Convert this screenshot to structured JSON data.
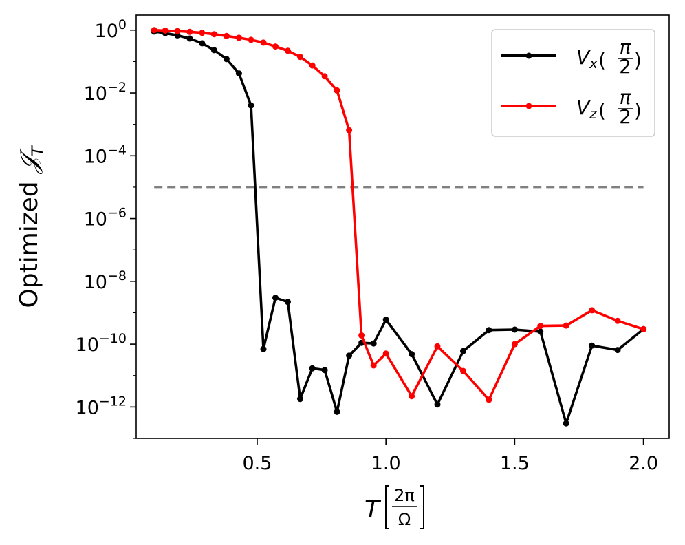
{
  "chart_data": {
    "type": "line",
    "yscale": "log",
    "xlim": [
      0.03,
      2.1
    ],
    "ylim": [
      1e-13,
      3.0
    ],
    "grid": false,
    "legend_position": "top-right",
    "xlabel": {
      "main": "T",
      "frac_num": "2π",
      "frac_den": "Ω"
    },
    "ylabel": {
      "text": "Optimized ",
      "symbol": "𝒥",
      "subscript": "T"
    },
    "xticks": [
      {
        "value": 0.5,
        "label": "0.5"
      },
      {
        "value": 1.0,
        "label": "1.0"
      },
      {
        "value": 1.5,
        "label": "1.5"
      },
      {
        "value": 2.0,
        "label": "2.0"
      }
    ],
    "yticks": [
      {
        "exp": 0,
        "base": "10",
        "label": "0"
      },
      {
        "exp": -2,
        "base": "10",
        "label": "−2"
      },
      {
        "exp": -4,
        "base": "10",
        "label": "−4"
      },
      {
        "exp": -6,
        "base": "10",
        "label": "−6"
      },
      {
        "exp": -8,
        "base": "10",
        "label": "−8"
      },
      {
        "exp": -10,
        "base": "10",
        "label": "−10"
      },
      {
        "exp": -12,
        "base": "10",
        "label": "−12"
      }
    ],
    "threshold": {
      "value": 1e-05,
      "x_start": 0.1,
      "x_end": 2.0,
      "color": "#808080",
      "style": "dashed"
    },
    "series": [
      {
        "name": "Vx(π/2)",
        "legend": {
          "main": "V",
          "sub": "x",
          "num": "π",
          "den": "2"
        },
        "color": "#000000",
        "points": [
          [
            0.1,
            0.9
          ],
          [
            0.143,
            0.8
          ],
          [
            0.19,
            0.68
          ],
          [
            0.238,
            0.54
          ],
          [
            0.286,
            0.38
          ],
          [
            0.333,
            0.23
          ],
          [
            0.381,
            0.12
          ],
          [
            0.429,
            0.042
          ],
          [
            0.476,
            0.004
          ],
          [
            0.524,
            7e-11
          ],
          [
            0.571,
            3e-09
          ],
          [
            0.619,
            2.2e-09
          ],
          [
            0.667,
            1.8e-12
          ],
          [
            0.714,
            1.7e-11
          ],
          [
            0.762,
            1.5e-11
          ],
          [
            0.81,
            7e-13
          ],
          [
            0.857,
            4.3e-11
          ],
          [
            0.905,
            1.1e-10
          ],
          [
            0.952,
            1.05e-10
          ],
          [
            1.0,
            6e-10
          ],
          [
            1.1,
            4.8e-11
          ],
          [
            1.2,
            1.2e-12
          ],
          [
            1.3,
            6e-11
          ],
          [
            1.4,
            2.8e-10
          ],
          [
            1.5,
            2.9e-10
          ],
          [
            1.6,
            2.5e-10
          ],
          [
            1.7,
            3e-13
          ],
          [
            1.8,
            9e-11
          ],
          [
            1.9,
            6.5e-11
          ],
          [
            2.0,
            3e-10
          ]
        ]
      },
      {
        "name": "Vz(π/2)",
        "legend": {
          "main": "V",
          "sub": "z",
          "num": "π",
          "den": "2"
        },
        "color": "#ff0000",
        "points": [
          [
            0.1,
            1.0
          ],
          [
            0.143,
            0.97
          ],
          [
            0.19,
            0.93
          ],
          [
            0.238,
            0.88
          ],
          [
            0.286,
            0.82
          ],
          [
            0.333,
            0.74
          ],
          [
            0.381,
            0.65
          ],
          [
            0.429,
            0.57
          ],
          [
            0.476,
            0.49
          ],
          [
            0.524,
            0.4
          ],
          [
            0.571,
            0.3
          ],
          [
            0.619,
            0.22
          ],
          [
            0.667,
            0.14
          ],
          [
            0.714,
            0.075
          ],
          [
            0.762,
            0.034
          ],
          [
            0.81,
            0.012
          ],
          [
            0.857,
            0.00065
          ],
          [
            0.905,
            1.9e-10
          ],
          [
            0.952,
            2.1e-11
          ],
          [
            1.0,
            5e-11
          ],
          [
            1.1,
            2.2e-12
          ],
          [
            1.2,
            8.5e-11
          ],
          [
            1.3,
            1.4e-11
          ],
          [
            1.4,
            1.7e-12
          ],
          [
            1.5,
            1e-10
          ],
          [
            1.6,
            3.8e-10
          ],
          [
            1.7,
            3.9e-10
          ],
          [
            1.8,
            1.2e-09
          ],
          [
            1.9,
            5.5e-10
          ],
          [
            2.0,
            3e-10
          ]
        ]
      }
    ]
  }
}
